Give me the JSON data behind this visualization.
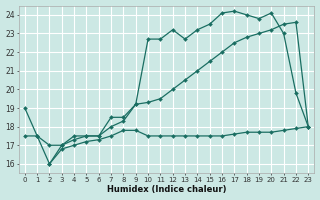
{
  "xlabel": "Humidex (Indice chaleur)",
  "bg_color": "#cce8e4",
  "grid_color": "#ffffff",
  "line_color": "#1a6e62",
  "xlim": [
    -0.5,
    23.5
  ],
  "ylim": [
    15.5,
    24.5
  ],
  "xticks": [
    0,
    1,
    2,
    3,
    4,
    5,
    6,
    7,
    8,
    9,
    10,
    11,
    12,
    13,
    14,
    15,
    16,
    17,
    18,
    19,
    20,
    21,
    22,
    23
  ],
  "yticks": [
    16,
    17,
    18,
    19,
    20,
    21,
    22,
    23,
    24
  ],
  "line1_x": [
    0,
    1,
    2,
    3,
    4,
    5,
    6,
    7,
    8,
    9,
    10,
    11,
    12,
    13,
    14,
    15,
    16,
    17,
    18,
    19,
    20,
    21,
    22,
    23
  ],
  "line1_y": [
    19.0,
    17.5,
    16.0,
    17.0,
    17.5,
    17.5,
    17.5,
    18.5,
    18.5,
    19.2,
    22.7,
    22.7,
    23.2,
    22.7,
    23.2,
    23.5,
    24.1,
    24.2,
    24.0,
    23.8,
    24.1,
    23.0,
    19.8,
    18.0
  ],
  "line2_x": [
    0,
    1,
    2,
    3,
    4,
    5,
    6,
    7,
    8,
    9,
    10,
    11,
    12,
    13,
    14,
    15,
    16,
    17,
    18,
    19,
    20,
    21,
    22,
    23
  ],
  "line2_y": [
    17.5,
    17.5,
    17.0,
    17.0,
    17.3,
    17.5,
    17.5,
    18.0,
    18.3,
    19.2,
    19.3,
    19.5,
    20.0,
    20.5,
    21.0,
    21.5,
    22.0,
    22.5,
    22.8,
    23.0,
    23.2,
    23.5,
    23.6,
    18.0
  ],
  "line3_x": [
    2,
    3,
    4,
    5,
    6,
    7,
    8,
    9,
    10,
    11,
    12,
    13,
    14,
    15,
    16,
    17,
    18,
    19,
    20,
    21,
    22,
    23
  ],
  "line3_y": [
    16.0,
    16.8,
    17.0,
    17.2,
    17.3,
    17.5,
    17.8,
    17.8,
    17.5,
    17.5,
    17.5,
    17.5,
    17.5,
    17.5,
    17.5,
    17.6,
    17.7,
    17.7,
    17.7,
    17.8,
    17.9,
    18.0
  ]
}
